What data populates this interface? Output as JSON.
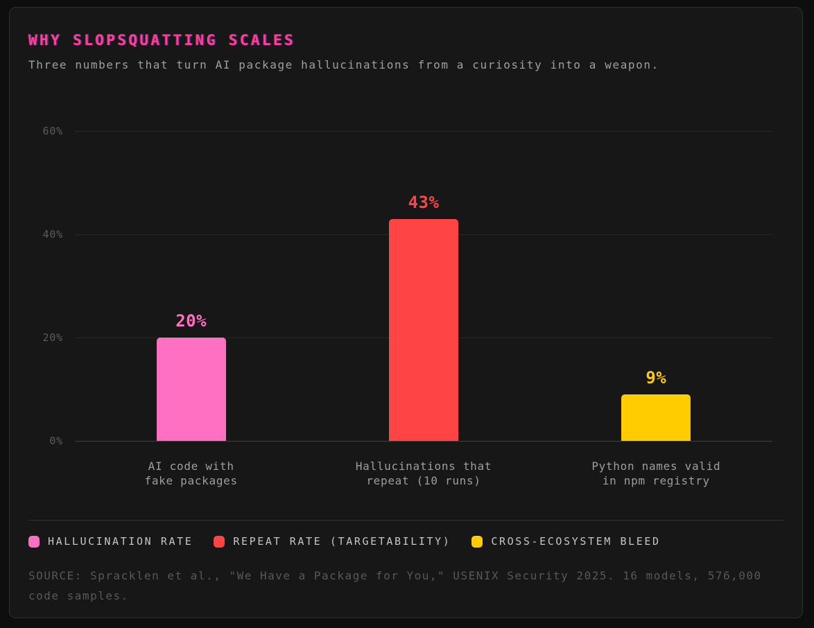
{
  "header": {
    "title": "WHY SLOPSQUATTING SCALES",
    "subtitle": "Three numbers that turn AI package hallucinations from a curiosity into a weapon."
  },
  "chart_data": {
    "type": "bar",
    "title": "WHY SLOPSQUATTING SCALES",
    "xlabel": "",
    "ylabel": "",
    "ylim": [
      0,
      60
    ],
    "y_ticks": [
      "60%",
      "40%",
      "20%",
      "0%"
    ],
    "grid": true,
    "legend_position": "bottom",
    "categories": [
      "AI code with\nfake packages",
      "Hallucinations that\nrepeat (10 runs)",
      "Python names valid\nin npm registry"
    ],
    "series": [
      {
        "name": "HALLUCINATION RATE",
        "category": "AI code with fake packages",
        "value": 20,
        "display_value": "20%",
        "color": "#ff70c2"
      },
      {
        "name": "REPEAT RATE (TARGETABILITY)",
        "category": "Hallucinations that repeat (10 runs)",
        "value": 43,
        "display_value": "43%",
        "color": "#ff4444"
      },
      {
        "name": "CROSS-ECOSYSTEM BLEED",
        "category": "Python names valid in npm registry",
        "value": 9,
        "display_value": "9%",
        "color": "#ffcc00"
      }
    ]
  },
  "footer": {
    "source": "SOURCE: Spracklen et al., \"We Have a Package for You,\" USENIX Security 2025. 16 models, 576,000 code samples."
  },
  "colors": {
    "background": "#0e0e0e",
    "card": "#171717",
    "border": "#2f2f2f",
    "accent_pink": "#ff3e9c",
    "bar_pink": "#ff70c2",
    "bar_red": "#ff4444",
    "bar_yellow": "#ffcc00",
    "grid": "#282828",
    "axis": "#404040"
  }
}
